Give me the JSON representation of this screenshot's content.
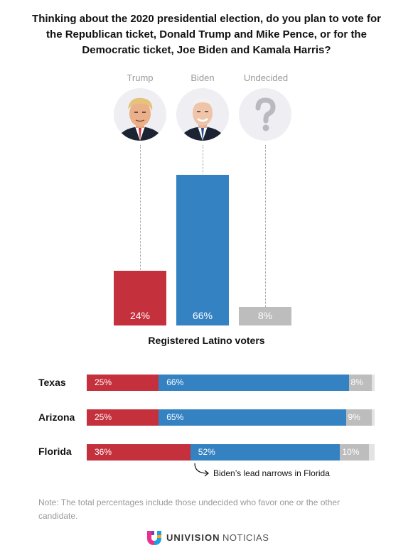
{
  "title": "Thinking about the 2020 presidential election, do you plan to vote for the Republican ticket, Donald Trump and Mike Pence, or for the Democratic ticket, Joe Biden and Kamala Harris?",
  "colors": {
    "trump": "#c5303d",
    "biden": "#3582c3",
    "undecided": "#bdbdbd",
    "track": "#e3e3e3"
  },
  "candidates": [
    {
      "name": "Trump",
      "icon": "trump-portrait-icon"
    },
    {
      "name": "Biden",
      "icon": "biden-portrait-icon"
    },
    {
      "name": "Undecided",
      "icon": "question-mark-icon"
    }
  ],
  "chart_data": [
    {
      "type": "bar",
      "categories": [
        "Trump",
        "Biden",
        "Undecided"
      ],
      "values": [
        24,
        66,
        8
      ],
      "labels": [
        "24%",
        "66%",
        "8%"
      ],
      "xlabel": "Registered Latino voters",
      "ylabel": "",
      "ylim": [
        0,
        100
      ]
    },
    {
      "type": "bar",
      "orientation": "horizontal-stacked",
      "categories": [
        "Texas",
        "Arizona",
        "Florida"
      ],
      "series": [
        {
          "name": "Trump",
          "values": [
            25,
            25,
            36
          ],
          "labels": [
            "25%",
            "25%",
            "36%"
          ]
        },
        {
          "name": "Biden",
          "values": [
            66,
            65,
            52
          ],
          "labels": [
            "66%",
            "65%",
            "52%"
          ]
        },
        {
          "name": "Undecided",
          "values": [
            8,
            9,
            10
          ],
          "labels": [
            "8%",
            "9%",
            "10%"
          ]
        }
      ],
      "xlim": [
        0,
        100
      ],
      "annotation": "Biden’s lead narrows in Florida"
    }
  ],
  "note": "Note: The total percentages include those undecided who favor one or the other candidate.",
  "logo": {
    "brand": "UNIVISION",
    "sub": "NOTICIAS"
  }
}
